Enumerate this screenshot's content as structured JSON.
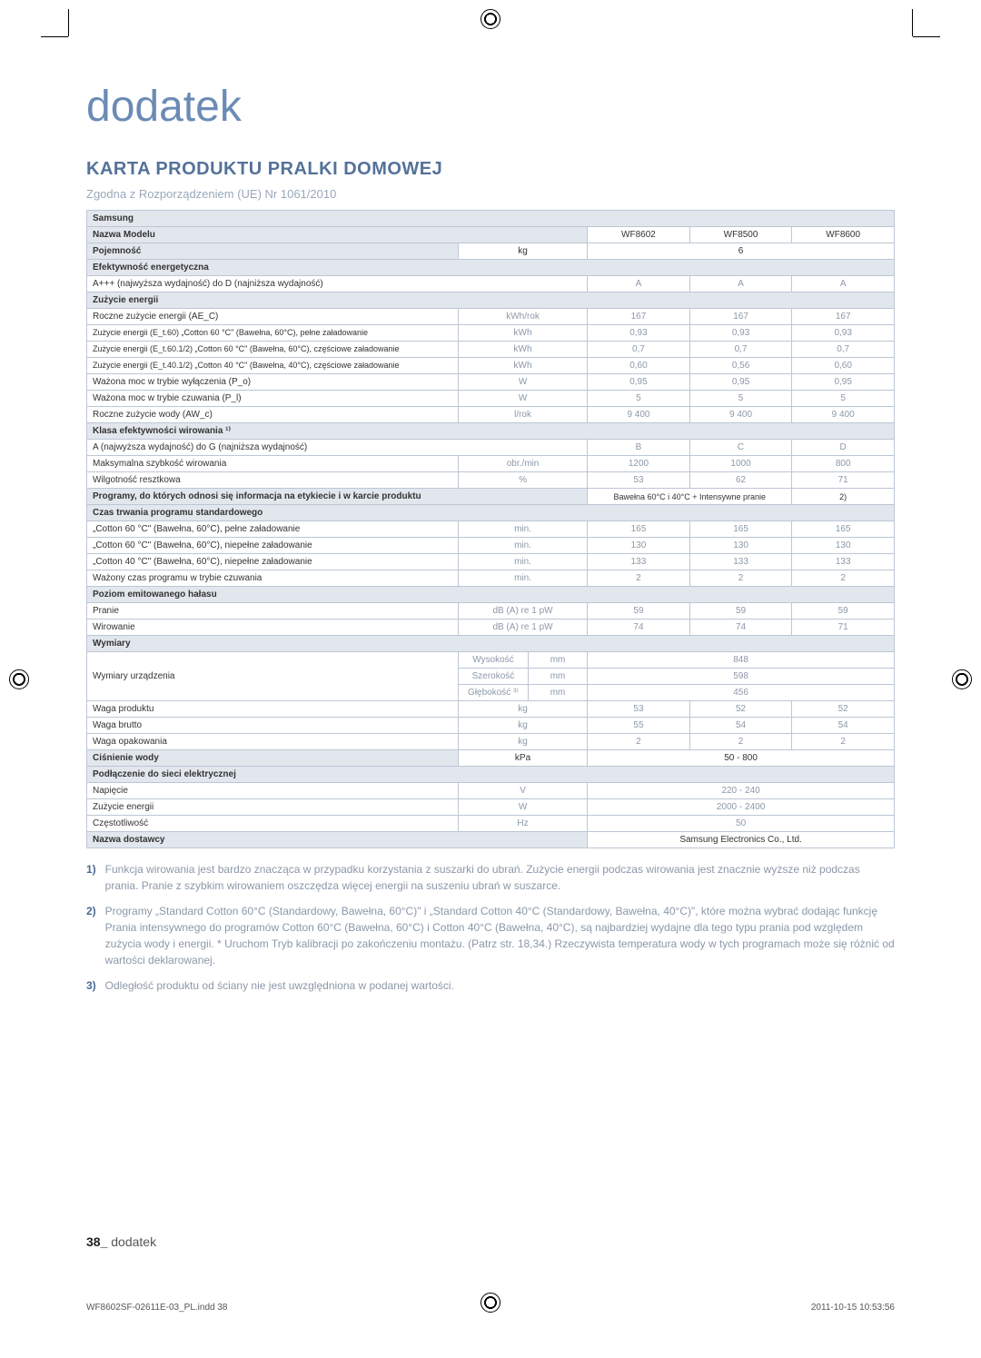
{
  "page": {
    "title": "dodatek",
    "heading": "KARTA PRODUKTU PRALKI DOMOWEJ",
    "subtitle": "Zgodna z Rozporządzeniem (UE) Nr 1061/2010",
    "footer_num": "38_",
    "footer_text": " dodatek",
    "imprint_left": "WF8602SF-02611E-03_PL.indd   38",
    "imprint_right": "2011-10-15   10:53:56"
  },
  "cols": {
    "m1": "WF8602",
    "m2": "WF8500",
    "m3": "WF8600"
  },
  "rows": {
    "samsung": "Samsung",
    "model": "Nazwa Modelu",
    "capacity": {
      "label": "Pojemność",
      "unit": "kg",
      "val": "6"
    },
    "eff_energy": "Efektywność energetyczna",
    "eff_scale": {
      "label": "A+++ (najwyższa wydajność) do D (najniższa wydajność)",
      "v1": "A",
      "v2": "A",
      "v3": "A"
    },
    "energy_use": "Zużycie energii",
    "ae_c": {
      "label": "Roczne zużycie energii (AE_C)",
      "unit": "kWh/rok",
      "v1": "167",
      "v2": "167",
      "v3": "167"
    },
    "et60": {
      "label": "Zużycie energii (E_t.60) „Cotton 60 °C\" (Bawełna, 60°C), pełne załadowanie",
      "unit": "kWh",
      "v1": "0,93",
      "v2": "0,93",
      "v3": "0,93"
    },
    "et60_half": {
      "label": "Zużycie energii (E_t.60.1/2) „Cotton 60 °C\" (Bawełna, 60°C), częściowe załadowanie",
      "unit": "kWh",
      "v1": "0,7",
      "v2": "0,7",
      "v3": "0,7"
    },
    "et40_half": {
      "label": "Zużycie energii (E_t.40.1/2) „Cotton 40 °C\" (Bawełna, 40°C), częściowe załadowanie",
      "unit": "kWh",
      "v1": "0,60",
      "v2": "0,56",
      "v3": "0,60"
    },
    "po": {
      "label": "Ważona moc w trybie wyłączenia (P_o)",
      "unit": "W",
      "v1": "0,95",
      "v2": "0,95",
      "v3": "0,95"
    },
    "pl": {
      "label": "Ważona moc w trybie czuwania (P_l)",
      "unit": "W",
      "v1": "5",
      "v2": "5",
      "v3": "5"
    },
    "awc": {
      "label": "Roczne zużycie wody (AW_c)",
      "unit": "l/rok",
      "v1": "9 400",
      "v2": "9 400",
      "v3": "9 400"
    },
    "spin_class": "Klasa efektywności wirowania ¹⁾",
    "spin_scale": {
      "label": "A (najwyższa wydajność) do G (najniższa wydajność)",
      "v1": "B",
      "v2": "C",
      "v3": "D"
    },
    "max_spin": {
      "label": "Maksymalna szybkość wirowania",
      "unit": "obr./min",
      "v1": "1200",
      "v2": "1000",
      "v3": "800"
    },
    "resid": {
      "label": "Wilgotność resztkowa",
      "unit": "%",
      "v1": "53",
      "v2": "62",
      "v3": "71"
    },
    "programs": {
      "label": "Programy, do których odnosi się informacja na etykiecie i w karcie produktu",
      "val": "Bawełna 60°C i 40°C + Intensywne pranie"
    },
    "std_time": "Czas trwania programu standardowego",
    "c60full": {
      "label": "„Cotton 60 °C\" (Bawełna, 60°C), pełne załadowanie",
      "unit": "min.",
      "v1": "165",
      "v2": "165",
      "v3": "165"
    },
    "c60half": {
      "label": "„Cotton 60 °C\" (Bawełna, 60°C), niepełne załadowanie",
      "unit": "min.",
      "v1": "130",
      "v2": "130",
      "v3": "130"
    },
    "c40half": {
      "label": "„Cotton 40 °C\" (Bawełna, 60°C), niepełne załadowanie",
      "unit": "min.",
      "v1": "133",
      "v2": "133",
      "v3": "133"
    },
    "standby_time": {
      "label": "Ważony czas programu w trybie czuwania",
      "unit": "min.",
      "v1": "2",
      "v2": "2",
      "v3": "2"
    },
    "noise": "Poziom emitowanego hałasu",
    "wash_noise": {
      "label": "Pranie",
      "unit": "dB (A) re 1 pW",
      "v1": "59",
      "v2": "59",
      "v3": "59"
    },
    "spin_noise": {
      "label": "Wirowanie",
      "unit": "dB (A) re 1 pW",
      "v1": "74",
      "v2": "74",
      "v3": "71"
    },
    "dims": "Wymiary",
    "dims_label": "Wymiary urządzenia",
    "height": {
      "label": "Wysokość",
      "unit": "mm",
      "val": "848"
    },
    "width": {
      "label": "Szerokość",
      "unit": "mm",
      "val": "598"
    },
    "depth": {
      "label": "Głębokość ³⁾",
      "unit": "mm",
      "val": "456"
    },
    "weight_net": {
      "label": "Waga produktu",
      "unit": "kg",
      "v1": "53",
      "v2": "52",
      "v3": "52"
    },
    "weight_gross": {
      "label": "Waga brutto",
      "unit": "kg",
      "v1": "55",
      "v2": "54",
      "v3": "54"
    },
    "weight_pack": {
      "label": "Waga opakowania",
      "unit": "kg",
      "v1": "2",
      "v2": "2",
      "v3": "2"
    },
    "pressure": {
      "label": "Ciśnienie wody",
      "unit": "kPa",
      "val": "50 - 800"
    },
    "elec": "Podłączenie do sieci elektrycznej",
    "voltage": {
      "label": "Napięcie",
      "unit": "V",
      "val": "220 - 240"
    },
    "power": {
      "label": "Zużycie energii",
      "unit": "W",
      "val": "2000 - 2400"
    },
    "freq": {
      "label": "Częstotliwość",
      "unit": "Hz",
      "val": "50"
    },
    "supplier": {
      "label": "Nazwa dostawcy",
      "val": "Samsung Electronics Co., Ltd."
    }
  },
  "notes": {
    "n1": "Funkcja wirowania jest bardzo znacząca w przypadku korzystania z suszarki do ubrań. Zużycie energii podczas wirowania jest znacznie wyższe niż podczas prania. Pranie z szybkim wirowaniem oszczędza więcej energii na suszeniu ubrań w suszarce.",
    "n2": "Programy „Standard Cotton 60°C (Standardowy, Bawełna, 60°C)\" i „Standard Cotton 40°C (Standardowy, Bawełna, 40°C)\", które można wybrać dodając funkcję Prania intensywnego do programów Cotton 60°C (Bawełna, 60°C) i Cotton 40°C (Bawełna, 40°C), są najbardziej wydajne dla tego typu prania pod względem zużycia wody i energii. * Uruchom Tryb kalibracji po zakończeniu montażu. (Patrz str. 18,34.) Rzeczywista temperatura wody w tych programach może się różnić od wartości deklarowanej.",
    "n3": "Odległość produktu od ściany nie jest uwzględniona w podanej wartości."
  },
  "programs_footnote": "2)"
}
